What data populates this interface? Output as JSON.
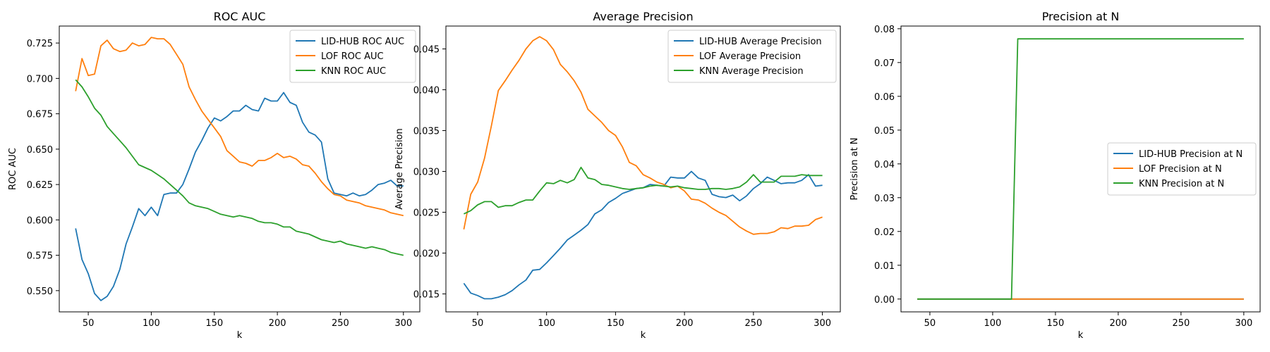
{
  "colors": {
    "lid_hub": "#1f77b4",
    "lof": "#ff7f0e",
    "knn": "#2ca02c"
  },
  "chart_data": [
    {
      "type": "line",
      "title": "ROC AUC",
      "xlabel": "k",
      "ylabel": "ROC AUC",
      "xlim": [
        27,
        313
      ],
      "ylim": [
        0.535,
        0.737
      ],
      "xticks": [
        50,
        100,
        150,
        200,
        250,
        300
      ],
      "yticks": [
        0.55,
        0.575,
        0.6,
        0.625,
        0.65,
        0.675,
        0.7,
        0.725
      ],
      "ytick_labels": [
        "0.550",
        "0.575",
        "0.600",
        "0.625",
        "0.650",
        "0.675",
        "0.700",
        "0.725"
      ],
      "legend": "top-right",
      "x": [
        40,
        45,
        50,
        55,
        60,
        65,
        70,
        75,
        80,
        85,
        90,
        95,
        100,
        105,
        110,
        115,
        120,
        125,
        130,
        135,
        140,
        145,
        150,
        155,
        160,
        165,
        170,
        175,
        180,
        185,
        190,
        195,
        200,
        205,
        210,
        215,
        220,
        225,
        230,
        235,
        240,
        245,
        250,
        255,
        260,
        265,
        270,
        275,
        280,
        285,
        290,
        295,
        300
      ],
      "series": [
        {
          "name": "LID-HUB ROC AUC",
          "color_key": "lid_hub",
          "values": [
            0.594,
            0.572,
            0.562,
            0.548,
            0.543,
            0.546,
            0.553,
            0.565,
            0.583,
            0.595,
            0.608,
            0.603,
            0.609,
            0.603,
            0.618,
            0.619,
            0.619,
            0.625,
            0.636,
            0.648,
            0.656,
            0.665,
            0.672,
            0.67,
            0.673,
            0.677,
            0.677,
            0.681,
            0.678,
            0.677,
            0.686,
            0.684,
            0.684,
            0.69,
            0.683,
            0.681,
            0.669,
            0.662,
            0.66,
            0.655,
            0.629,
            0.619,
            0.618,
            0.617,
            0.619,
            0.617,
            0.618,
            0.621,
            0.625,
            0.626,
            0.628,
            0.624,
            0.624
          ]
        },
        {
          "name": "LOF ROC AUC",
          "color_key": "lof",
          "values": [
            0.691,
            0.714,
            0.702,
            0.703,
            0.723,
            0.727,
            0.721,
            0.719,
            0.72,
            0.725,
            0.723,
            0.724,
            0.729,
            0.728,
            0.728,
            0.724,
            0.717,
            0.71,
            0.694,
            0.685,
            0.677,
            0.671,
            0.665,
            0.659,
            0.649,
            0.645,
            0.641,
            0.64,
            0.638,
            0.642,
            0.642,
            0.644,
            0.647,
            0.644,
            0.645,
            0.643,
            0.639,
            0.638,
            0.633,
            0.627,
            0.622,
            0.618,
            0.617,
            0.614,
            0.613,
            0.612,
            0.61,
            0.609,
            0.608,
            0.607,
            0.605,
            0.604,
            0.603
          ]
        },
        {
          "name": "KNN ROC AUC",
          "color_key": "knn",
          "values": [
            0.699,
            0.694,
            0.687,
            0.679,
            0.674,
            0.666,
            0.661,
            0.656,
            0.651,
            0.645,
            0.639,
            0.637,
            0.635,
            0.632,
            0.629,
            0.625,
            0.621,
            0.617,
            0.612,
            0.61,
            0.609,
            0.608,
            0.606,
            0.604,
            0.603,
            0.602,
            0.603,
            0.602,
            0.601,
            0.599,
            0.598,
            0.598,
            0.597,
            0.595,
            0.595,
            0.592,
            0.591,
            0.59,
            0.588,
            0.586,
            0.585,
            0.584,
            0.585,
            0.583,
            0.582,
            0.581,
            0.58,
            0.581,
            0.58,
            0.579,
            0.577,
            0.576,
            0.575
          ]
        }
      ]
    },
    {
      "type": "line",
      "title": "Average Precision",
      "xlabel": "k",
      "ylabel": "Average Precision",
      "xlim": [
        27,
        313
      ],
      "ylim": [
        0.0128,
        0.0478
      ],
      "xticks": [
        50,
        100,
        150,
        200,
        250,
        300
      ],
      "yticks": [
        0.015,
        0.02,
        0.025,
        0.03,
        0.035,
        0.04,
        0.045
      ],
      "ytick_labels": [
        "0.015",
        "0.020",
        "0.025",
        "0.030",
        "0.035",
        "0.040",
        "0.045"
      ],
      "legend": "top-right",
      "x": [
        40,
        45,
        50,
        55,
        60,
        65,
        70,
        75,
        80,
        85,
        90,
        95,
        100,
        105,
        110,
        115,
        120,
        125,
        130,
        135,
        140,
        145,
        150,
        155,
        160,
        165,
        170,
        175,
        180,
        185,
        190,
        195,
        200,
        205,
        210,
        215,
        220,
        225,
        230,
        235,
        240,
        245,
        250,
        255,
        260,
        265,
        270,
        275,
        280,
        285,
        290,
        295,
        300
      ],
      "series": [
        {
          "name": "LID-HUB Average Precision",
          "color_key": "lid_hub",
          "values": [
            0.0163,
            0.0151,
            0.0148,
            0.0144,
            0.0144,
            0.0146,
            0.0149,
            0.0154,
            0.0161,
            0.0167,
            0.0179,
            0.018,
            0.0188,
            0.0197,
            0.0206,
            0.0216,
            0.0222,
            0.0228,
            0.0235,
            0.0248,
            0.0253,
            0.0262,
            0.0267,
            0.0273,
            0.0276,
            0.0279,
            0.028,
            0.0284,
            0.0283,
            0.0282,
            0.0293,
            0.0292,
            0.0292,
            0.03,
            0.0292,
            0.0289,
            0.0272,
            0.0269,
            0.0268,
            0.0271,
            0.0264,
            0.027,
            0.0279,
            0.0285,
            0.0293,
            0.0289,
            0.0285,
            0.0286,
            0.0286,
            0.0289,
            0.0296,
            0.0282,
            0.0283
          ]
        },
        {
          "name": "LOF Average Precision",
          "color_key": "lof",
          "values": [
            0.0229,
            0.0272,
            0.0287,
            0.0316,
            0.0356,
            0.0399,
            0.0411,
            0.0424,
            0.0436,
            0.045,
            0.046,
            0.0465,
            0.046,
            0.0449,
            0.0431,
            0.0422,
            0.0411,
            0.0397,
            0.0376,
            0.0368,
            0.036,
            0.035,
            0.0344,
            0.033,
            0.0311,
            0.0307,
            0.0296,
            0.0292,
            0.0287,
            0.0284,
            0.028,
            0.0282,
            0.0276,
            0.0266,
            0.0265,
            0.0261,
            0.0255,
            0.025,
            0.0246,
            0.0239,
            0.0232,
            0.0227,
            0.0223,
            0.0224,
            0.0224,
            0.0226,
            0.0231,
            0.023,
            0.0233,
            0.0233,
            0.0234,
            0.0241,
            0.0244
          ]
        },
        {
          "name": "KNN Average Precision",
          "color_key": "knn",
          "values": [
            0.0248,
            0.0252,
            0.0259,
            0.0263,
            0.0263,
            0.0256,
            0.0258,
            0.0258,
            0.0262,
            0.0265,
            0.0265,
            0.0276,
            0.0286,
            0.0285,
            0.0289,
            0.0286,
            0.029,
            0.0305,
            0.0292,
            0.029,
            0.0284,
            0.0283,
            0.0281,
            0.0279,
            0.0278,
            0.0279,
            0.028,
            0.0282,
            0.0283,
            0.0282,
            0.0281,
            0.0282,
            0.028,
            0.0279,
            0.0278,
            0.0278,
            0.0279,
            0.0279,
            0.0278,
            0.0279,
            0.0281,
            0.0287,
            0.0296,
            0.0287,
            0.0287,
            0.0287,
            0.0294,
            0.0294,
            0.0294,
            0.0296,
            0.0295,
            0.0295,
            0.0295
          ]
        }
      ]
    },
    {
      "type": "line",
      "title": "Precision at N",
      "xlabel": "k",
      "ylabel": "Precision at N",
      "xlim": [
        27,
        313
      ],
      "ylim": [
        -0.0038,
        0.0808
      ],
      "xticks": [
        50,
        100,
        150,
        200,
        250,
        300
      ],
      "yticks": [
        0,
        0.01,
        0.02,
        0.03,
        0.04,
        0.05,
        0.06,
        0.07,
        0.08
      ],
      "ytick_labels": [
        "0.00",
        "0.01",
        "0.02",
        "0.03",
        "0.04",
        "0.05",
        "0.06",
        "0.07",
        "0.08"
      ],
      "legend": "center-right",
      "series": [
        {
          "name": "LID-HUB Precision at N",
          "color_key": "lid_hub",
          "x": [
            40,
            300
          ],
          "values": [
            0,
            0
          ]
        },
        {
          "name": "LOF Precision at N",
          "color_key": "lof",
          "x": [
            40,
            300
          ],
          "values": [
            0,
            0
          ]
        },
        {
          "name": "KNN Precision at N",
          "color_key": "knn",
          "x": [
            40,
            115,
            120,
            300
          ],
          "values": [
            0,
            0,
            0.077,
            0.077
          ]
        }
      ]
    }
  ]
}
